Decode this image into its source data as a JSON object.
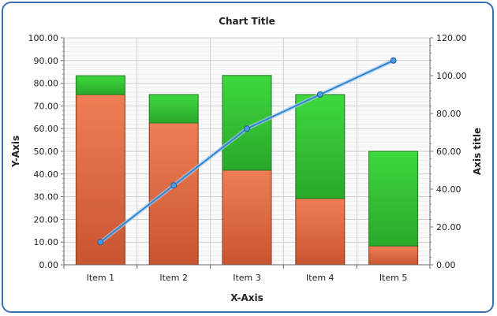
{
  "chart_data": {
    "type": "bar",
    "stacked": true,
    "title": "Chart Title",
    "xlabel": "X-Axis",
    "ylabel": "Y-Axis",
    "y2label": "Axis title",
    "categories": [
      "Item 1",
      "Item 2",
      "Item 3",
      "Item 4",
      "Item 5"
    ],
    "ylim": [
      0,
      100
    ],
    "y2lim": [
      0,
      120
    ],
    "yticks": [
      "0.00",
      "10.00",
      "20.00",
      "30.00",
      "40.00",
      "50.00",
      "60.00",
      "70.00",
      "80.00",
      "90.00",
      "100.00"
    ],
    "y2ticks": [
      "0.00",
      "20.00",
      "40.00",
      "60.00",
      "80.00",
      "100.00",
      "120.00"
    ],
    "grid": true,
    "legend": "none",
    "series": [
      {
        "type": "bar",
        "axis": "left",
        "color": "#e2683e",
        "values": [
          75,
          62.5,
          41.7,
          29.2,
          8.3
        ]
      },
      {
        "type": "bar",
        "axis": "left",
        "color": "#3cc83c",
        "values": [
          8.3,
          12.5,
          41.7,
          45.8,
          41.7
        ]
      },
      {
        "type": "line",
        "axis": "right",
        "color": "#2f86d4",
        "values": [
          12,
          42,
          72,
          90,
          108
        ]
      }
    ]
  }
}
